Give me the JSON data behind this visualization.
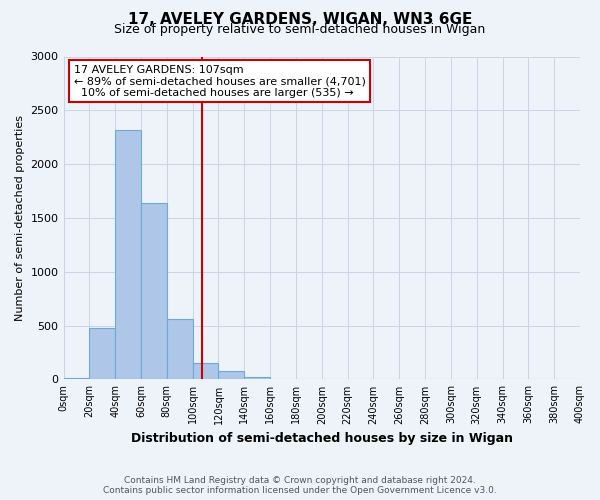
{
  "title": "17, AVELEY GARDENS, WIGAN, WN3 6GE",
  "subtitle": "Size of property relative to semi-detached houses in Wigan",
  "xlabel": "Distribution of semi-detached houses by size in Wigan",
  "ylabel": "Number of semi-detached properties",
  "bin_edges": [
    0,
    20,
    40,
    60,
    80,
    100,
    120,
    140,
    160,
    180,
    200,
    220,
    240,
    260,
    280,
    300,
    320,
    340,
    360,
    380,
    400
  ],
  "bar_values": [
    15,
    480,
    2320,
    1640,
    560,
    150,
    80,
    25,
    5,
    0,
    0,
    0,
    0,
    0,
    0,
    0,
    0,
    0,
    0,
    0
  ],
  "bar_color": "#aec6e8",
  "bar_edge_color": "#6aaad4",
  "property_value": 107,
  "vline_color": "#cc0000",
  "annotation_title": "17 AVELEY GARDENS: 107sqm",
  "annotation_line1": "← 89% of semi-detached houses are smaller (4,701)",
  "annotation_line2": "10% of semi-detached houses are larger (535) →",
  "annotation_box_color": "#ffffff",
  "annotation_box_edge": "#cc0000",
  "ylim": [
    0,
    3000
  ],
  "xlim": [
    0,
    400
  ],
  "yticks": [
    0,
    500,
    1000,
    1500,
    2000,
    2500,
    3000
  ],
  "xtick_labels": [
    "0sqm",
    "20sqm",
    "40sqm",
    "60sqm",
    "80sqm",
    "100sqm",
    "120sqm",
    "140sqm",
    "160sqm",
    "180sqm",
    "200sqm",
    "220sqm",
    "240sqm",
    "260sqm",
    "280sqm",
    "300sqm",
    "320sqm",
    "340sqm",
    "360sqm",
    "380sqm",
    "400sqm"
  ],
  "footer_line1": "Contains HM Land Registry data © Crown copyright and database right 2024.",
  "footer_line2": "Contains public sector information licensed under the Open Government Licence v3.0.",
  "bg_color": "#eef2f9",
  "grid_color": "#c8d4e8",
  "title_fontsize": 11,
  "subtitle_fontsize": 9
}
